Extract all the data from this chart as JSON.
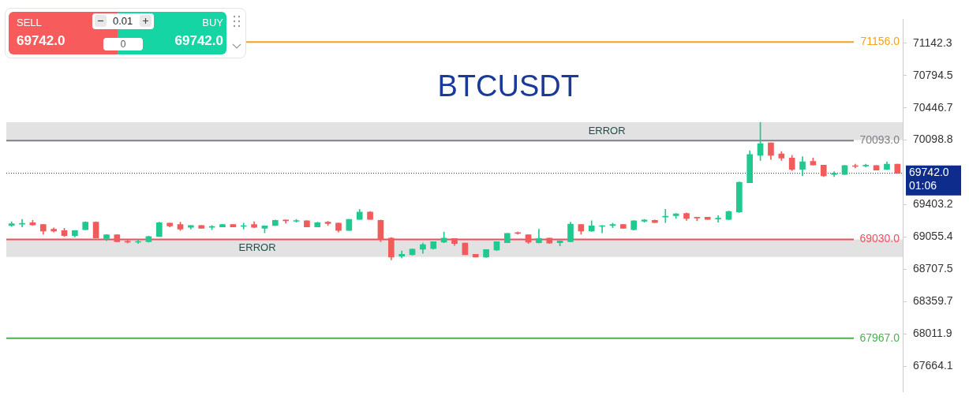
{
  "chart_data": {
    "type": "candlestick",
    "title": "BTCUSDT",
    "categories": [
      null,
      null,
      null,
      null,
      null,
      null,
      null,
      null,
      null,
      null,
      null,
      null,
      null,
      null,
      null,
      null,
      null,
      null,
      null,
      null,
      null,
      null,
      null,
      null,
      null,
      null,
      null,
      null,
      null,
      null,
      null,
      null,
      null,
      null,
      null,
      null,
      null,
      null,
      null,
      null,
      null,
      null,
      null,
      null,
      null,
      null,
      null,
      null,
      null,
      null,
      null,
      null,
      null,
      null,
      null,
      null,
      null,
      null,
      null,
      null,
      null,
      null,
      null,
      null,
      null,
      null,
      null,
      null,
      null,
      null,
      null,
      null,
      null,
      null,
      null,
      null,
      null,
      null,
      null,
      null,
      null,
      null,
      null,
      null,
      null
    ],
    "ohlc": [
      [
        69180,
        69220,
        69170,
        69200
      ],
      [
        69195,
        69245,
        69165,
        69200
      ],
      [
        69210,
        69235,
        69180,
        69185
      ],
      [
        69190,
        69190,
        69085,
        69120
      ],
      [
        69140,
        69155,
        69110,
        69120
      ],
      [
        69125,
        69150,
        69060,
        69070
      ],
      [
        69070,
        69125,
        69055,
        69125
      ],
      [
        69135,
        69220,
        69135,
        69215
      ],
      [
        69215,
        69220,
        69045,
        69045
      ],
      [
        69040,
        69080,
        69015,
        69080
      ],
      [
        69080,
        69080,
        69005,
        69005
      ],
      [
        69010,
        69020,
        68990,
        69000
      ],
      [
        69000,
        69030,
        68985,
        69005
      ],
      [
        69005,
        69065,
        69000,
        69060
      ],
      [
        69060,
        69215,
        69060,
        69210
      ],
      [
        69205,
        69205,
        69165,
        69175
      ],
      [
        69190,
        69215,
        69125,
        69140
      ],
      [
        69160,
        69180,
        69140,
        69180
      ],
      [
        69180,
        69180,
        69150,
        69150
      ],
      [
        69160,
        69180,
        69135,
        69165
      ],
      [
        69165,
        69190,
        69165,
        69190
      ],
      [
        69190,
        69190,
        69165,
        69165
      ],
      [
        69170,
        69205,
        69140,
        69175
      ],
      [
        69190,
        69220,
        69155,
        69160
      ],
      [
        69150,
        69175,
        69100,
        69175
      ],
      [
        69180,
        69240,
        69180,
        69235
      ],
      [
        69235,
        69240,
        69205,
        69230
      ],
      [
        69225,
        69245,
        69215,
        69230
      ],
      [
        69230,
        69230,
        69165,
        69165
      ],
      [
        69165,
        69215,
        69165,
        69210
      ],
      [
        69215,
        69225,
        69180,
        69200
      ],
      [
        69205,
        69205,
        69110,
        69125
      ],
      [
        69125,
        69245,
        69125,
        69245
      ],
      [
        69245,
        69355,
        69245,
        69325
      ],
      [
        69325,
        69330,
        69245,
        69245
      ],
      [
        69235,
        69240,
        69005,
        69030
      ],
      [
        69045,
        69050,
        68810,
        68840
      ],
      [
        68850,
        68905,
        68830,
        68870
      ],
      [
        68865,
        68930,
        68860,
        68925
      ],
      [
        68925,
        68990,
        68880,
        68975
      ],
      [
        68930,
        69005,
        68925,
        69005
      ],
      [
        69000,
        69110,
        68995,
        69045
      ],
      [
        69040,
        69040,
        68965,
        68985
      ],
      [
        68990,
        68990,
        68865,
        68865
      ],
      [
        68870,
        68870,
        68840,
        68840
      ],
      [
        68840,
        68920,
        68835,
        68920
      ],
      [
        68915,
        69005,
        68910,
        69005
      ],
      [
        68995,
        69095,
        68995,
        69095
      ],
      [
        69100,
        69110,
        69085,
        69095
      ],
      [
        69080,
        69080,
        68985,
        69000
      ],
      [
        68995,
        69140,
        68990,
        69040
      ],
      [
        69045,
        69045,
        68985,
        68990
      ],
      [
        68995,
        69015,
        68960,
        69015
      ],
      [
        69005,
        69215,
        69005,
        69195
      ],
      [
        69190,
        69190,
        69085,
        69120
      ],
      [
        69120,
        69230,
        69115,
        69175
      ],
      [
        69170,
        69180,
        69100,
        69175
      ],
      [
        69180,
        69205,
        69155,
        69190
      ],
      [
        69190,
        69190,
        69150,
        69150
      ],
      [
        69135,
        69230,
        69130,
        69230
      ],
      [
        69225,
        69245,
        69215,
        69240
      ],
      [
        69235,
        69240,
        69210,
        69210
      ],
      [
        69270,
        69355,
        69210,
        69280
      ],
      [
        69285,
        69310,
        69255,
        69305
      ],
      [
        69310,
        69315,
        69235,
        69255
      ],
      [
        69265,
        69265,
        69230,
        69260
      ],
      [
        69270,
        69270,
        69245,
        69245
      ],
      [
        69250,
        69285,
        69215,
        69255
      ],
      [
        69245,
        69335,
        69240,
        69330
      ],
      [
        69325,
        69650,
        69320,
        69645
      ],
      [
        69640,
        69985,
        69640,
        69945
      ],
      [
        69935,
        70290,
        69880,
        70060
      ],
      [
        70070,
        70070,
        69890,
        69935
      ],
      [
        69950,
        69975,
        69880,
        69905
      ],
      [
        69905,
        69935,
        69770,
        69785
      ],
      [
        69785,
        69920,
        69715,
        69865
      ],
      [
        69870,
        69905,
        69830,
        69830
      ],
      [
        69830,
        69830,
        69705,
        69715
      ],
      [
        69730,
        69760,
        69705,
        69740
      ],
      [
        69730,
        69825,
        69730,
        69825
      ],
      [
        69820,
        69840,
        69800,
        69815
      ],
      [
        69820,
        69840,
        69810,
        69830
      ],
      [
        69825,
        69825,
        69775,
        69775
      ],
      [
        69785,
        69865,
        69780,
        69840
      ],
      [
        69840,
        69840,
        69740,
        69742
      ]
    ],
    "ylim": [
      67390,
      71400
    ],
    "yticks": [
      67664.1,
      68011.9,
      68359.7,
      68707.5,
      69055.4,
      69403.2,
      70098.8,
      70446.7,
      70794.5,
      71142.3
    ],
    "grid": false,
    "legend": false,
    "ref_lines": [
      {
        "axis": "y",
        "value": 71156.0,
        "label": "71156.0",
        "color": "#f7a21b"
      },
      {
        "axis": "y",
        "value": 70093.0,
        "label": "70093.0",
        "color": "#7d7f87"
      },
      {
        "axis": "y",
        "value": 69030.0,
        "label": "69030.0",
        "color": "#f0505a"
      },
      {
        "axis": "y",
        "value": 67967.0,
        "label": "67967.0",
        "color": "#4caf50"
      },
      {
        "axis": "y",
        "value": 69742.0,
        "label": "69742.0",
        "color": "#0d2c8c",
        "line_style": "dotted"
      }
    ],
    "bands": [
      {
        "axis": "y",
        "from": 70100,
        "to": 70290,
        "label": "ERROR",
        "color": "#e2e2e2"
      },
      {
        "axis": "y",
        "from": 68840,
        "to": 69030,
        "label": "ERROR",
        "color": "#e2e2e2"
      }
    ],
    "annotations": [
      "01:06",
      "SELL",
      "69742.0",
      "0.01",
      "0",
      "BUY",
      "69742.0"
    ]
  }
}
